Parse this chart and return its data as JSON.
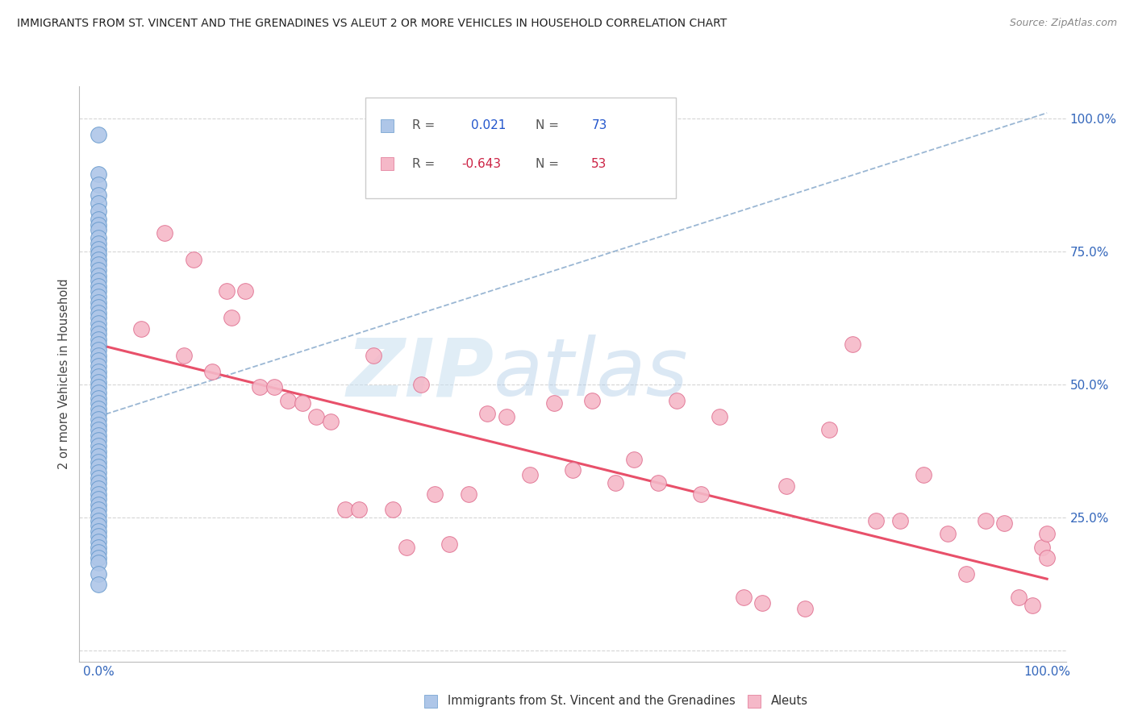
{
  "title": "IMMIGRANTS FROM ST. VINCENT AND THE GRENADINES VS ALEUT 2 OR MORE VEHICLES IN HOUSEHOLD CORRELATION CHART",
  "source": "Source: ZipAtlas.com",
  "ylabel": "2 or more Vehicles in Household",
  "blue_color": "#aec6e8",
  "blue_edge_color": "#6699cc",
  "pink_color": "#f5b8c8",
  "pink_edge_color": "#e07090",
  "blue_line_color": "#88aacc",
  "pink_line_color": "#e8506a",
  "watermark_zip": "ZIP",
  "watermark_atlas": "atlas",
  "r1": "0.021",
  "n1": "73",
  "r2": "-0.643",
  "n2": "53",
  "blue_scatter_x": [
    0.0,
    0.0,
    0.0,
    0.0,
    0.0,
    0.0,
    0.0,
    0.0,
    0.0,
    0.0,
    0.0,
    0.0,
    0.0,
    0.0,
    0.0,
    0.0,
    0.0,
    0.0,
    0.0,
    0.0,
    0.0,
    0.0,
    0.0,
    0.0,
    0.0,
    0.0,
    0.0,
    0.0,
    0.0,
    0.0,
    0.0,
    0.0,
    0.0,
    0.0,
    0.0,
    0.0,
    0.0,
    0.0,
    0.0,
    0.0,
    0.0,
    0.0,
    0.0,
    0.0,
    0.0,
    0.0,
    0.0,
    0.0,
    0.0,
    0.0,
    0.0,
    0.0,
    0.0,
    0.0,
    0.0,
    0.0,
    0.0,
    0.0,
    0.0,
    0.0,
    0.0,
    0.0,
    0.0,
    0.0,
    0.0,
    0.0,
    0.0,
    0.0,
    0.0,
    0.0,
    0.0,
    0.0,
    0.0
  ],
  "blue_scatter_y": [
    0.97,
    0.895,
    0.875,
    0.855,
    0.84,
    0.825,
    0.81,
    0.8,
    0.79,
    0.775,
    0.765,
    0.755,
    0.745,
    0.735,
    0.725,
    0.715,
    0.705,
    0.695,
    0.685,
    0.675,
    0.665,
    0.655,
    0.645,
    0.635,
    0.625,
    0.615,
    0.605,
    0.595,
    0.585,
    0.575,
    0.565,
    0.555,
    0.545,
    0.535,
    0.525,
    0.515,
    0.505,
    0.495,
    0.485,
    0.475,
    0.465,
    0.455,
    0.445,
    0.435,
    0.425,
    0.415,
    0.405,
    0.395,
    0.385,
    0.375,
    0.365,
    0.355,
    0.345,
    0.335,
    0.325,
    0.315,
    0.305,
    0.295,
    0.285,
    0.275,
    0.265,
    0.255,
    0.245,
    0.235,
    0.225,
    0.215,
    0.205,
    0.195,
    0.185,
    0.175,
    0.165,
    0.145,
    0.125
  ],
  "pink_scatter_x": [
    0.045,
    0.07,
    0.09,
    0.1,
    0.12,
    0.135,
    0.14,
    0.155,
    0.17,
    0.185,
    0.2,
    0.215,
    0.23,
    0.245,
    0.26,
    0.275,
    0.29,
    0.31,
    0.325,
    0.34,
    0.355,
    0.37,
    0.39,
    0.41,
    0.43,
    0.455,
    0.48,
    0.5,
    0.52,
    0.545,
    0.565,
    0.59,
    0.61,
    0.635,
    0.655,
    0.68,
    0.7,
    0.725,
    0.745,
    0.77,
    0.795,
    0.82,
    0.845,
    0.87,
    0.895,
    0.915,
    0.935,
    0.955,
    0.97,
    0.985,
    0.995,
    1.0,
    1.0
  ],
  "pink_scatter_y": [
    0.605,
    0.785,
    0.555,
    0.735,
    0.525,
    0.675,
    0.625,
    0.675,
    0.495,
    0.495,
    0.47,
    0.465,
    0.44,
    0.43,
    0.265,
    0.265,
    0.555,
    0.265,
    0.195,
    0.5,
    0.295,
    0.2,
    0.295,
    0.445,
    0.44,
    0.33,
    0.465,
    0.34,
    0.47,
    0.315,
    0.36,
    0.315,
    0.47,
    0.295,
    0.44,
    0.1,
    0.09,
    0.31,
    0.08,
    0.415,
    0.575,
    0.245,
    0.245,
    0.33,
    0.22,
    0.145,
    0.245,
    0.24,
    0.1,
    0.085,
    0.195,
    0.22,
    0.175
  ],
  "blue_line_x": [
    0.0,
    1.0
  ],
  "blue_line_y": [
    0.44,
    1.01
  ],
  "pink_line_x": [
    0.0,
    1.0
  ],
  "pink_line_y": [
    0.575,
    0.135
  ],
  "xlim": [
    -0.02,
    1.02
  ],
  "ylim": [
    -0.02,
    1.06
  ],
  "xticks": [
    0.0,
    0.25,
    0.5,
    0.75,
    1.0
  ],
  "xtick_labels": [
    "0.0%",
    "",
    "",
    "",
    "100.0%"
  ],
  "yticks": [
    0.0,
    0.25,
    0.5,
    0.75,
    1.0
  ],
  "ytick_labels": [
    "",
    "25.0%",
    "50.0%",
    "75.0%",
    "100.0%"
  ],
  "legend_label1": "Immigrants from St. Vincent and the Grenadines",
  "legend_label2": "Aleuts"
}
